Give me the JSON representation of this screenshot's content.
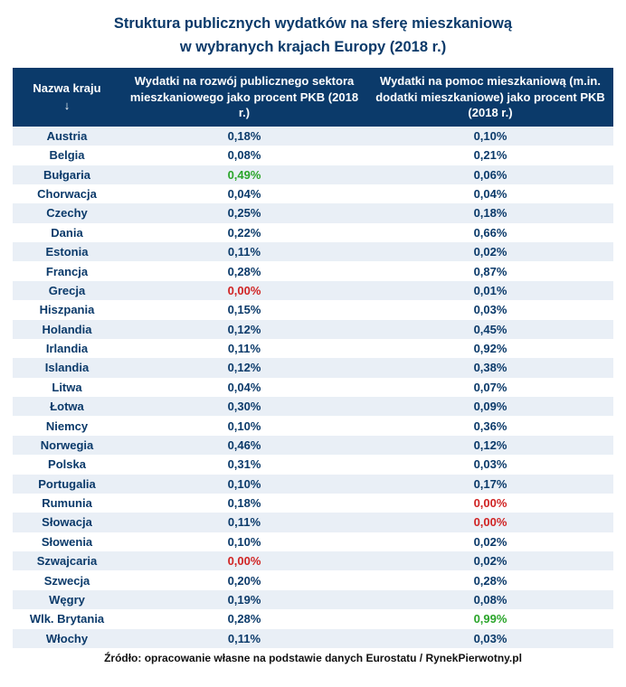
{
  "title_line1": "Struktura publicznych wydatków na sferę mieszkaniową",
  "title_line2": "w wybranych krajach Europy (2018 r.)",
  "colors": {
    "header_bg": "#0b3a6a",
    "header_text": "#ffffff",
    "row_odd_bg": "#e9eff6",
    "row_even_bg": "#ffffff",
    "normal_text": "#0b3a6a",
    "highlight_high": "#2aa52a",
    "highlight_low": "#d02424"
  },
  "columns": {
    "c0": "Nazwa kraju",
    "c0_arrow": "↓",
    "c1": "Wydatki na rozwój publicznego sektora mieszkaniowego jako procent PKB (2018 r.)",
    "c2": "Wydatki na pomoc mieszkaniową (m.in. dodatki mieszkaniowe) jako procent PKB (2018 r.)"
  },
  "rows": [
    {
      "country": "Austria",
      "v1": "0,18%",
      "s1": "",
      "v2": "0,10%",
      "s2": ""
    },
    {
      "country": "Belgia",
      "v1": "0,08%",
      "s1": "",
      "v2": "0,21%",
      "s2": ""
    },
    {
      "country": "Bułgaria",
      "v1": "0,49%",
      "s1": "green",
      "v2": "0,06%",
      "s2": ""
    },
    {
      "country": "Chorwacja",
      "v1": "0,04%",
      "s1": "",
      "v2": "0,04%",
      "s2": ""
    },
    {
      "country": "Czechy",
      "v1": "0,25%",
      "s1": "",
      "v2": "0,18%",
      "s2": ""
    },
    {
      "country": "Dania",
      "v1": "0,22%",
      "s1": "",
      "v2": "0,66%",
      "s2": ""
    },
    {
      "country": "Estonia",
      "v1": "0,11%",
      "s1": "",
      "v2": "0,02%",
      "s2": ""
    },
    {
      "country": "Francja",
      "v1": "0,28%",
      "s1": "",
      "v2": "0,87%",
      "s2": ""
    },
    {
      "country": "Grecja",
      "v1": "0,00%",
      "s1": "red",
      "v2": "0,01%",
      "s2": ""
    },
    {
      "country": "Hiszpania",
      "v1": "0,15%",
      "s1": "",
      "v2": "0,03%",
      "s2": ""
    },
    {
      "country": "Holandia",
      "v1": "0,12%",
      "s1": "",
      "v2": "0,45%",
      "s2": ""
    },
    {
      "country": "Irlandia",
      "v1": "0,11%",
      "s1": "",
      "v2": "0,92%",
      "s2": ""
    },
    {
      "country": "Islandia",
      "v1": "0,12%",
      "s1": "",
      "v2": "0,38%",
      "s2": ""
    },
    {
      "country": "Litwa",
      "v1": "0,04%",
      "s1": "",
      "v2": "0,07%",
      "s2": ""
    },
    {
      "country": "Łotwa",
      "v1": "0,30%",
      "s1": "",
      "v2": "0,09%",
      "s2": ""
    },
    {
      "country": "Niemcy",
      "v1": "0,10%",
      "s1": "",
      "v2": "0,36%",
      "s2": ""
    },
    {
      "country": "Norwegia",
      "v1": "0,46%",
      "s1": "",
      "v2": "0,12%",
      "s2": ""
    },
    {
      "country": "Polska",
      "v1": "0,31%",
      "s1": "",
      "v2": "0,03%",
      "s2": ""
    },
    {
      "country": "Portugalia",
      "v1": "0,10%",
      "s1": "",
      "v2": "0,17%",
      "s2": ""
    },
    {
      "country": "Rumunia",
      "v1": "0,18%",
      "s1": "",
      "v2": "0,00%",
      "s2": "red"
    },
    {
      "country": "Słowacja",
      "v1": "0,11%",
      "s1": "",
      "v2": "0,00%",
      "s2": "red"
    },
    {
      "country": "Słowenia",
      "v1": "0,10%",
      "s1": "",
      "v2": "0,02%",
      "s2": ""
    },
    {
      "country": "Szwajcaria",
      "v1": "0,00%",
      "s1": "red",
      "v2": "0,02%",
      "s2": ""
    },
    {
      "country": "Szwecja",
      "v1": "0,20%",
      "s1": "",
      "v2": "0,28%",
      "s2": ""
    },
    {
      "country": "Węgry",
      "v1": "0,19%",
      "s1": "",
      "v2": "0,08%",
      "s2": ""
    },
    {
      "country": "Wlk. Brytania",
      "v1": "0,28%",
      "s1": "",
      "v2": "0,99%",
      "s2": "green"
    },
    {
      "country": "Włochy",
      "v1": "0,11%",
      "s1": "",
      "v2": "0,03%",
      "s2": ""
    }
  ],
  "source": "Źródło: opracowanie własne na podstawie danych Eurostatu / RynekPierwotny.pl"
}
